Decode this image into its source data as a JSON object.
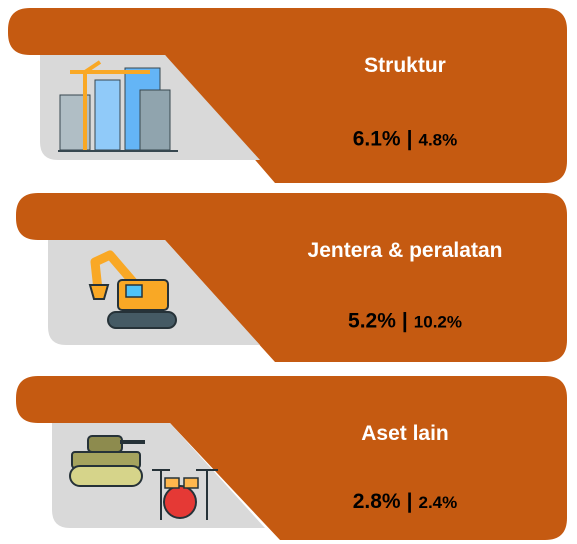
{
  "separator": "|",
  "items": [
    {
      "title": "Struktur",
      "primary": "6.1%",
      "secondary": "4.8%"
    },
    {
      "title": "Jentera & peralatan",
      "primary": "5.2%",
      "secondary": "10.2%"
    },
    {
      "title": "Aset lain",
      "primary": "2.8%",
      "secondary": "2.4%"
    }
  ]
}
